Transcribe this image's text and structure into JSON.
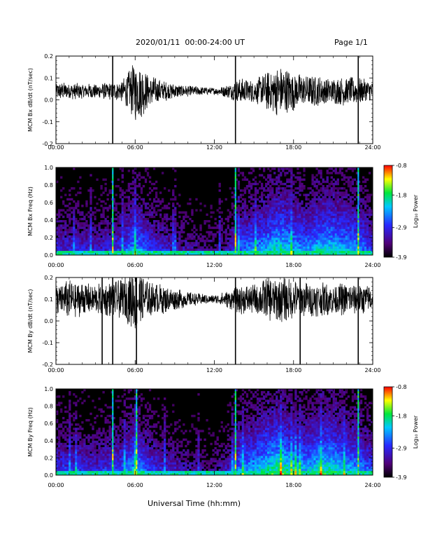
{
  "header": {
    "title": "2020/01/11  00:00-24:00 UT",
    "page": "Page 1/1"
  },
  "x_axis_label": "Universal Time (hh:mm)",
  "colors": {
    "trace": "#000000",
    "background": "#000000"
  },
  "chart_data": [
    {
      "type": "line",
      "ylabel": "MCM Bx dB/dt (nT/sec)",
      "xlim": [
        0,
        24
      ],
      "ylim": [
        -0.2,
        0.2
      ],
      "xticks": [
        "00:00",
        "06:00",
        "12:00",
        "18:00",
        "24:00"
      ],
      "yticks": [
        "-0.2",
        "-0.1",
        "0.0",
        "0.1",
        "0.2"
      ],
      "ytick_values": [
        -0.2,
        -0.1,
        0.0,
        0.1,
        0.2
      ],
      "baseline": 0.04,
      "envelope": {
        "x": [
          0,
          1,
          2,
          3,
          4,
          5,
          5.5,
          6,
          6.5,
          7,
          8,
          9,
          10,
          11,
          12,
          13,
          14,
          15,
          16,
          17,
          18,
          19,
          20,
          21,
          22,
          23,
          24
        ],
        "amplitude": [
          0.04,
          0.04,
          0.035,
          0.035,
          0.04,
          0.05,
          0.09,
          0.14,
          0.12,
          0.08,
          0.05,
          0.035,
          0.025,
          0.02,
          0.015,
          0.03,
          0.06,
          0.05,
          0.09,
          0.12,
          0.09,
          0.07,
          0.07,
          0.06,
          0.07,
          0.06,
          0.05
        ]
      },
      "spikes": [
        {
          "x": 4.3,
          "y": [
            -0.2,
            0.2
          ]
        },
        {
          "x": 13.6,
          "y": [
            -0.2,
            0.2
          ]
        },
        {
          "x": 22.9,
          "y": [
            -0.2,
            0.2
          ]
        }
      ]
    },
    {
      "type": "heatmap",
      "ylabel": "MCM Bx Freq (Hz)",
      "xlim": [
        0,
        24
      ],
      "ylim": [
        0,
        1
      ],
      "xticks": [
        "00:00",
        "06:00",
        "12:00",
        "18:00",
        "24:00"
      ],
      "yticks": [
        "0.0",
        "0.2",
        "0.4",
        "0.6",
        "0.8",
        "1.0"
      ],
      "ytick_values": [
        0.0,
        0.2,
        0.4,
        0.6,
        0.8,
        1.0
      ],
      "colorbar": {
        "label": "Log₁₀ Power",
        "ticks": [
          "-0.8",
          "-1.8",
          "-2.9",
          "-3.9"
        ],
        "tick_values": [
          -0.8,
          -1.8,
          -2.9,
          -3.9
        ],
        "range": [
          -3.9,
          -0.8
        ]
      },
      "activity": {
        "x": [
          0,
          1,
          2,
          3,
          4,
          5,
          6,
          7,
          8,
          9,
          10,
          11,
          12,
          13,
          14,
          15,
          16,
          17,
          18,
          19,
          20,
          21,
          22,
          23,
          24
        ],
        "level": [
          0.35,
          0.35,
          0.35,
          0.3,
          0.35,
          0.4,
          0.6,
          0.45,
          0.35,
          0.3,
          0.25,
          0.2,
          0.2,
          0.25,
          0.5,
          0.55,
          0.6,
          0.7,
          0.6,
          0.55,
          0.65,
          0.65,
          0.6,
          0.55,
          0.4
        ]
      },
      "vertical_lines": [
        4.3,
        13.6,
        22.9
      ]
    },
    {
      "type": "line",
      "ylabel": "MCM By dB/dt (nT/sec)",
      "xlim": [
        0,
        24
      ],
      "ylim": [
        -0.2,
        0.2
      ],
      "xticks": [
        "00:00",
        "06:00",
        "12:00",
        "18:00",
        "24:00"
      ],
      "yticks": [
        "-0.2",
        "-0.1",
        "0.0",
        "0.1",
        "0.2"
      ],
      "ytick_values": [
        -0.2,
        -0.1,
        0.0,
        0.1,
        0.2
      ],
      "baseline": 0.1,
      "envelope": {
        "x": [
          0,
          1,
          2,
          3,
          4,
          5,
          5.5,
          6,
          6.5,
          7,
          8,
          9,
          10,
          11,
          12,
          13,
          14,
          15,
          16,
          17,
          18,
          19,
          20,
          21,
          22,
          23,
          24
        ],
        "amplitude": [
          0.07,
          0.09,
          0.08,
          0.07,
          0.08,
          0.09,
          0.12,
          0.16,
          0.12,
          0.08,
          0.07,
          0.05,
          0.035,
          0.025,
          0.02,
          0.04,
          0.07,
          0.07,
          0.1,
          0.11,
          0.09,
          0.08,
          0.08,
          0.07,
          0.08,
          0.07,
          0.06
        ]
      },
      "spikes": [
        {
          "x": 3.5,
          "y": [
            -0.2,
            0.2
          ]
        },
        {
          "x": 4.3,
          "y": [
            -0.2,
            0.2
          ]
        },
        {
          "x": 6.1,
          "y": [
            -0.2,
            0.2
          ]
        },
        {
          "x": 13.6,
          "y": [
            -0.2,
            0.2
          ]
        },
        {
          "x": 18.5,
          "y": [
            -0.2,
            0.2
          ]
        },
        {
          "x": 22.9,
          "y": [
            -0.2,
            0.2
          ]
        }
      ]
    },
    {
      "type": "heatmap",
      "ylabel": "MCM By Freq (Hz)",
      "xlim": [
        0,
        24
      ],
      "ylim": [
        0,
        1
      ],
      "xticks": [
        "00:00",
        "06:00",
        "12:00",
        "18:00",
        "24:00"
      ],
      "yticks": [
        "0.0",
        "0.2",
        "0.4",
        "0.6",
        "0.8",
        "1.0"
      ],
      "ytick_values": [
        0.0,
        0.2,
        0.4,
        0.6,
        0.8,
        1.0
      ],
      "colorbar": {
        "label": "Log₁₀ Power",
        "ticks": [
          "-0.8",
          "-1.8",
          "-2.9",
          "-3.9"
        ],
        "tick_values": [
          -0.8,
          -1.8,
          -2.9,
          -3.9
        ],
        "range": [
          -3.9,
          -0.8
        ]
      },
      "activity": {
        "x": [
          0,
          1,
          2,
          3,
          4,
          5,
          6,
          7,
          8,
          9,
          10,
          11,
          12,
          13,
          14,
          15,
          16,
          17,
          18,
          19,
          20,
          21,
          22,
          23,
          24
        ],
        "level": [
          0.4,
          0.4,
          0.4,
          0.35,
          0.4,
          0.45,
          0.6,
          0.45,
          0.35,
          0.3,
          0.25,
          0.2,
          0.2,
          0.3,
          0.55,
          0.6,
          0.7,
          0.75,
          0.65,
          0.6,
          0.7,
          0.7,
          0.6,
          0.55,
          0.45
        ]
      },
      "vertical_lines": [
        4.3,
        6.1,
        13.6,
        22.9
      ]
    }
  ]
}
